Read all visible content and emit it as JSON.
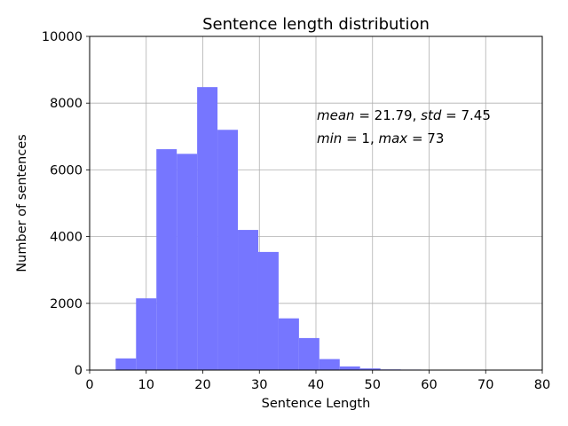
{
  "chart_data": {
    "type": "bar",
    "title": "Sentence length distribution",
    "xlabel": "Sentence Length",
    "ylabel": "Number of sentences",
    "xlim": [
      0,
      80
    ],
    "ylim": [
      0,
      10000
    ],
    "xticks": [
      "0",
      "10",
      "20",
      "30",
      "40",
      "50",
      "60",
      "70",
      "80"
    ],
    "yticks": [
      "0",
      "2000",
      "4000",
      "6000",
      "8000",
      "10000"
    ],
    "grid": true,
    "bar_color": "#7676ff",
    "bins": [
      {
        "x0": 4.6,
        "x1": 8.2,
        "value": 350
      },
      {
        "x0": 8.2,
        "x1": 11.8,
        "value": 2150
      },
      {
        "x0": 11.8,
        "x1": 15.4,
        "value": 6620
      },
      {
        "x0": 15.4,
        "x1": 19.0,
        "value": 6480
      },
      {
        "x0": 19.0,
        "x1": 22.6,
        "value": 8480
      },
      {
        "x0": 22.6,
        "x1": 26.2,
        "value": 7200
      },
      {
        "x0": 26.2,
        "x1": 29.8,
        "value": 4200
      },
      {
        "x0": 29.8,
        "x1": 33.4,
        "value": 3540
      },
      {
        "x0": 33.4,
        "x1": 37.0,
        "value": 1550
      },
      {
        "x0": 37.0,
        "x1": 40.6,
        "value": 960
      },
      {
        "x0": 40.6,
        "x1": 44.2,
        "value": 330
      },
      {
        "x0": 44.2,
        "x1": 47.8,
        "value": 110
      },
      {
        "x0": 47.8,
        "x1": 51.4,
        "value": 50
      },
      {
        "x0": 51.4,
        "x1": 55.0,
        "value": 20
      },
      {
        "x0": 55.0,
        "x1": 58.6,
        "value": 15
      },
      {
        "x0": 58.6,
        "x1": 62.2,
        "value": 10
      },
      {
        "x0": 62.2,
        "x1": 65.8,
        "value": 3
      },
      {
        "x0": 65.8,
        "x1": 69.4,
        "value": 2
      },
      {
        "x0": 69.4,
        "x1": 73.0,
        "value": 1
      }
    ],
    "annotations": {
      "line1": {
        "mean_label": "mean",
        "mean_value": "21.79",
        "std_label": "std",
        "std_value": "7.45"
      },
      "line2": {
        "min_label": "min",
        "min_value": "1",
        "max_label": "max",
        "max_value": "73"
      }
    }
  }
}
